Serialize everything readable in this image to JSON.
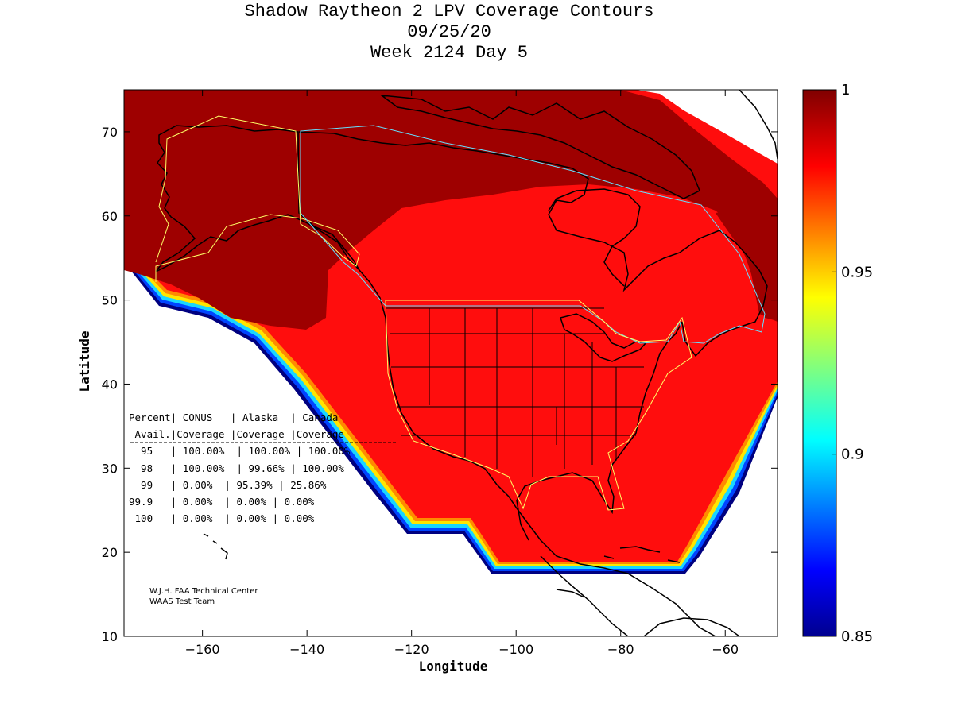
{
  "title": {
    "line1": "Shadow Raytheon 2 LPV Coverage Contours",
    "line2": "09/25/20",
    "line3": "Week 2124 Day 5"
  },
  "axes": {
    "xlabel": "Longitude",
    "ylabel": "Latitude",
    "xlim": [
      -175,
      -50
    ],
    "ylim": [
      10,
      75
    ],
    "xticks": [
      -160,
      -140,
      -120,
      -100,
      -80,
      -60
    ],
    "yticks": [
      10,
      20,
      30,
      40,
      50,
      60,
      70
    ]
  },
  "colorbar": {
    "range": [
      0.85,
      1
    ],
    "ticks": [
      "1",
      "0.95",
      "0.9",
      "0.85"
    ],
    "tick_values": [
      1,
      0.95,
      0.9,
      0.85
    ]
  },
  "coverage_table": {
    "header1": "Percent| CONUS   | Alaska  | Canada",
    "header2": " Avail.|Coverage |Coverage |Coverage",
    "rows": [
      "  95   | 100.00%  | 100.00% | 100.00%",
      "  98   | 100.00%  | 99.66% | 100.00%",
      "  99   | 0.00%  | 95.39% | 25.86%",
      "99.9   | 0.00%  | 0.00% | 0.00%",
      " 100   | 0.00%  | 0.00% | 0.00%"
    ]
  },
  "credit": {
    "line1": "W.J.H. FAA Technical Center",
    "line2": "WAAS Test Team"
  },
  "colors": {
    "coverage_high": "#9e0000",
    "coverage_main": "#ff0d0d",
    "orange": "#ff8a00",
    "yellow": "#ffe600",
    "cyan": "#19d6ff",
    "blue": "#0044ff",
    "navy": "#000080",
    "region_outline_yellow": "#ffff66",
    "region_outline_cyan": "#66e0ff"
  }
}
